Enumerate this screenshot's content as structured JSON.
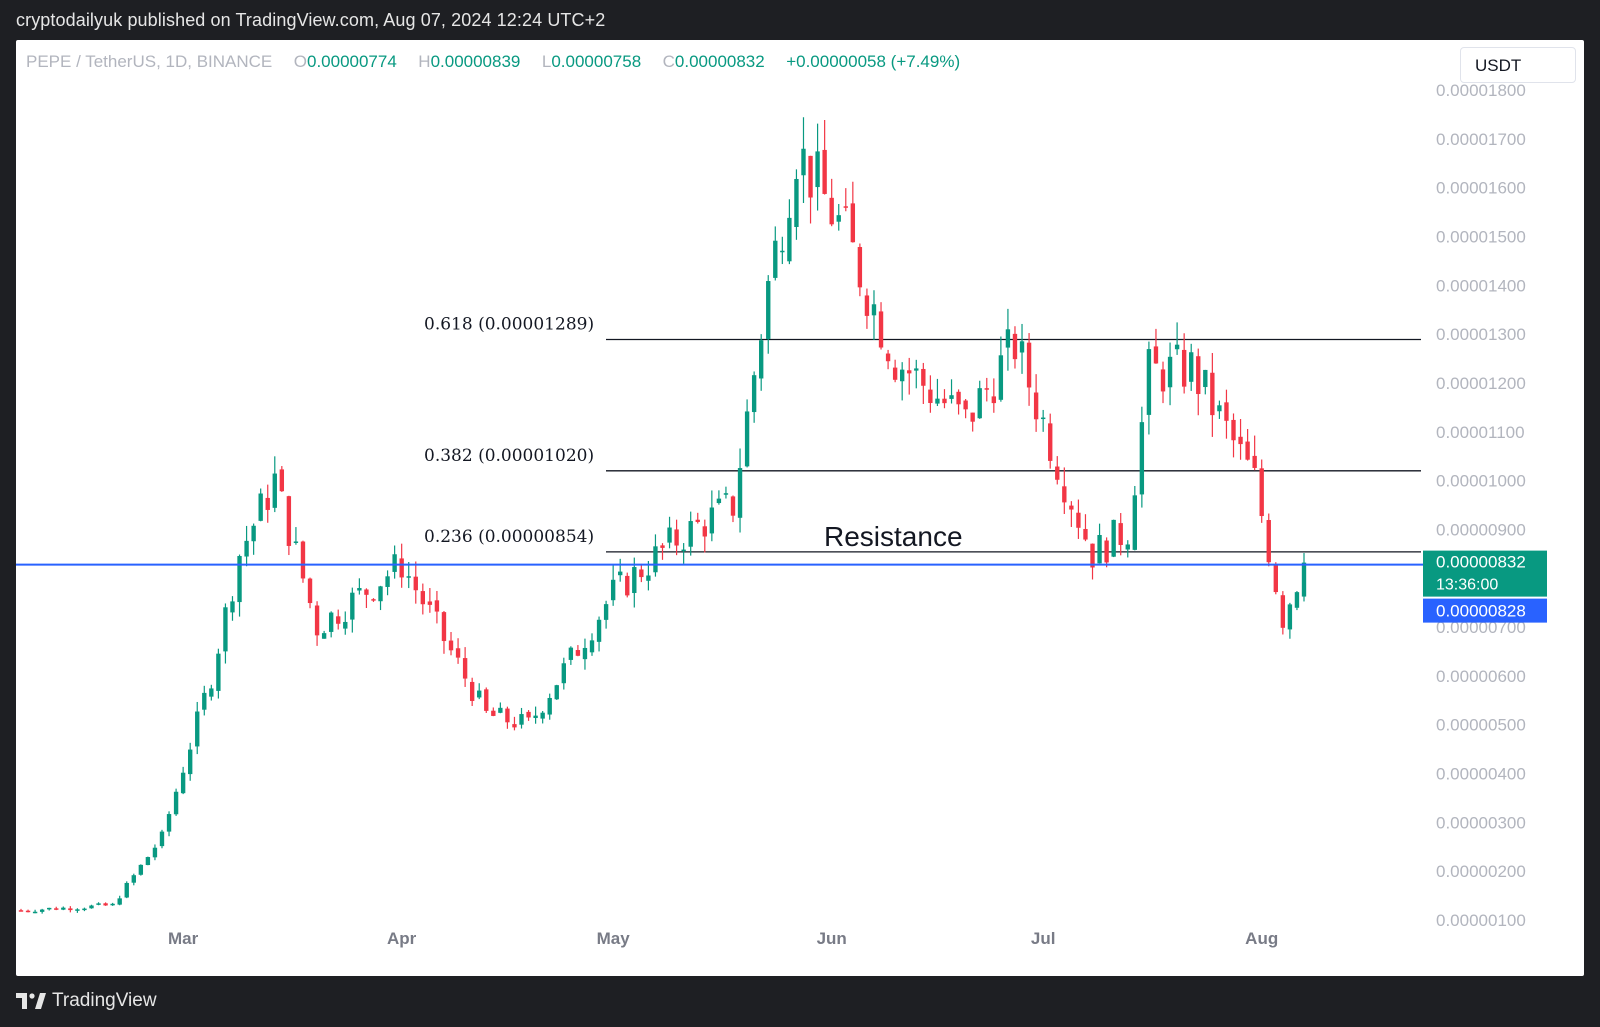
{
  "publish_line": "cryptodailyuk published on TradingView.com, Aug 07, 2024 12:24 UTC+2",
  "footer_brand": "TradingView",
  "legend": {
    "symbol": "PEPE / TetherUS, 1D, BINANCE",
    "o_label": "O",
    "o_value": "0.00000774",
    "h_label": "H",
    "h_value": "0.00000839",
    "l_label": "L",
    "l_value": "0.00000758",
    "c_label": "C",
    "c_value": "0.00000832",
    "change": "+0.00000058 (+7.49%)"
  },
  "currency_button": "USDT",
  "colors": {
    "up": "#089981",
    "down": "#f23645",
    "price_line": "#2962ff",
    "fib_line": "#131722",
    "axis_text": "#b2b5be"
  },
  "chart_data": {
    "type": "candlestick",
    "y_axis": {
      "min": 1e-06,
      "max": 1.8e-05,
      "tick_labels": [
        "0.00001800",
        "0.00001700",
        "0.00001600",
        "0.00001500",
        "0.00001400",
        "0.00001300",
        "0.00001200",
        "0.00001100",
        "0.00001000",
        "0.00000900",
        "0.00000800",
        "0.00000700",
        "0.00000600",
        "0.00000500",
        "0.00000400",
        "0.00000300",
        "0.00000200",
        "0.00000100"
      ],
      "tick_values": [
        1.8e-05,
        1.7e-05,
        1.6e-05,
        1.5e-05,
        1.4e-05,
        1.3e-05,
        1.2e-05,
        1.1e-05,
        1e-05,
        9e-06,
        8e-06,
        7e-06,
        6e-06,
        5e-06,
        4e-06,
        3e-06,
        2e-06,
        1e-06
      ]
    },
    "x_axis": {
      "start_date": "2024-02-07",
      "end_date": "2024-08-07",
      "month_labels": [
        {
          "label": "Mar",
          "date": "2024-03-01"
        },
        {
          "label": "Apr",
          "date": "2024-04-01"
        },
        {
          "label": "May",
          "date": "2024-05-01"
        },
        {
          "label": "Jun",
          "date": "2024-06-01"
        },
        {
          "label": "Jul",
          "date": "2024-07-01"
        },
        {
          "label": "Aug",
          "date": "2024-08-01"
        }
      ]
    },
    "key_prices": [
      {
        "date": "2024-02-07",
        "close": 1.2e-06
      },
      {
        "date": "2024-02-20",
        "close": 1.3e-06
      },
      {
        "date": "2024-02-27",
        "close": 2.7e-06
      },
      {
        "date": "2024-03-05",
        "close": 6e-06
      },
      {
        "date": "2024-03-09",
        "close": 8.5e-06
      },
      {
        "date": "2024-03-14",
        "close": 1e-05
      },
      {
        "date": "2024-03-20",
        "close": 7e-06
      },
      {
        "date": "2024-04-01",
        "close": 8.3e-06
      },
      {
        "date": "2024-04-13",
        "close": 5.2e-06
      },
      {
        "date": "2024-04-19",
        "close": 5e-06
      },
      {
        "date": "2024-05-01",
        "close": 7.7e-06
      },
      {
        "date": "2024-05-10",
        "close": 8.8e-06
      },
      {
        "date": "2024-05-18",
        "close": 9.5e-06
      },
      {
        "date": "2024-05-23",
        "close": 1.4e-05
      },
      {
        "date": "2024-05-27",
        "close": 1.68e-05
      },
      {
        "date": "2024-06-03",
        "close": 1.5e-05
      },
      {
        "date": "2024-06-10",
        "close": 1.25e-05
      },
      {
        "date": "2024-06-20",
        "close": 1.12e-05
      },
      {
        "date": "2024-06-27",
        "close": 1.28e-05
      },
      {
        "date": "2024-07-04",
        "close": 1e-05
      },
      {
        "date": "2024-07-08",
        "close": 8.5e-06
      },
      {
        "date": "2024-07-13",
        "close": 9e-06
      },
      {
        "date": "2024-07-16",
        "close": 1.22e-05
      },
      {
        "date": "2024-07-22",
        "close": 1.23e-05
      },
      {
        "date": "2024-07-31",
        "close": 1e-05
      },
      {
        "date": "2024-08-04",
        "close": 7.2e-06
      },
      {
        "date": "2024-08-07",
        "close": 8.32e-06
      }
    ],
    "fib_levels": [
      {
        "label": "0.618 (0.00001289)",
        "price": 1.289e-05
      },
      {
        "label": "0.382 (0.00001020)",
        "price": 1.02e-05
      },
      {
        "label": "0.236 (0.00000854)",
        "price": 8.54e-06
      }
    ],
    "annotations": [
      {
        "text": "Resistance"
      }
    ],
    "horizontal_line": {
      "price": 8.28e-06,
      "label": "0.00000828"
    },
    "last_price": {
      "price": 8.32e-06,
      "label": "0.00000832",
      "countdown": "13:36:00"
    }
  }
}
